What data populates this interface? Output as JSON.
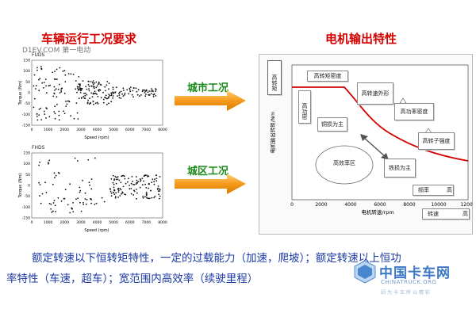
{
  "left_title": "车辆运行工况要求",
  "right_title": "电机输出特性",
  "watermark": "D1EV.COM 第一电动",
  "plot_top": {
    "title": "FUDS",
    "ylabel": "Torque (Nm)",
    "xlabel": "Speed (rpm)",
    "xticks": [
      "0",
      "1000",
      "2000",
      "3000",
      "4000",
      "5000",
      "6000",
      "7000",
      "8000"
    ],
    "yticks": [
      "150",
      "100",
      "50",
      "0",
      "-50",
      "-100",
      "-150"
    ]
  },
  "plot_bottom": {
    "title": "FHDS",
    "ylabel": "Torque (Nm)",
    "xlabel": "Speed (rpm)",
    "xticks": [
      "0",
      "1000",
      "2000",
      "3000",
      "4000",
      "5000",
      "6000",
      "7000",
      "8000"
    ],
    "yticks": [
      "150",
      "100",
      "50",
      "0",
      "-50",
      "-100",
      "-150"
    ]
  },
  "arrow_top_label": "城市工况",
  "arrow_bottom_label": "城区工况",
  "motor_chart": {
    "ylabel": "电机输出转矩/Nm",
    "xlabel": "电机转速/rpm",
    "xticks": [
      "0",
      "2000",
      "4000",
      "6000",
      "8000",
      "10000",
      "12000"
    ],
    "boxes": {
      "high_torque": "高转矩",
      "high_torque_density": "高转矩密度",
      "high_density": "高功密",
      "high_speed_field": "高转速外形",
      "copper_loss": "铜损为主",
      "high_power_density": "高功率密度",
      "high_speed_rotor": "高转子强度",
      "efficiency_zone": "高效率区",
      "iron_loss": "铁损为主",
      "freq": "频率",
      "freq_high": "高",
      "speed": "转速",
      "speed_high": "高"
    }
  },
  "bottom_line1": "额定转速以下恒转矩特性，一定的过载能力（加速，爬坡）；额定转速以上恒功",
  "bottom_line2": "率特性（车速，超车）；宽范围内高效率（续驶里程）",
  "logo_cn": "中国卡车网",
  "logo_en": "CHINATRUCK.ORG",
  "logo_sub": "因为卡车所以精彩"
}
